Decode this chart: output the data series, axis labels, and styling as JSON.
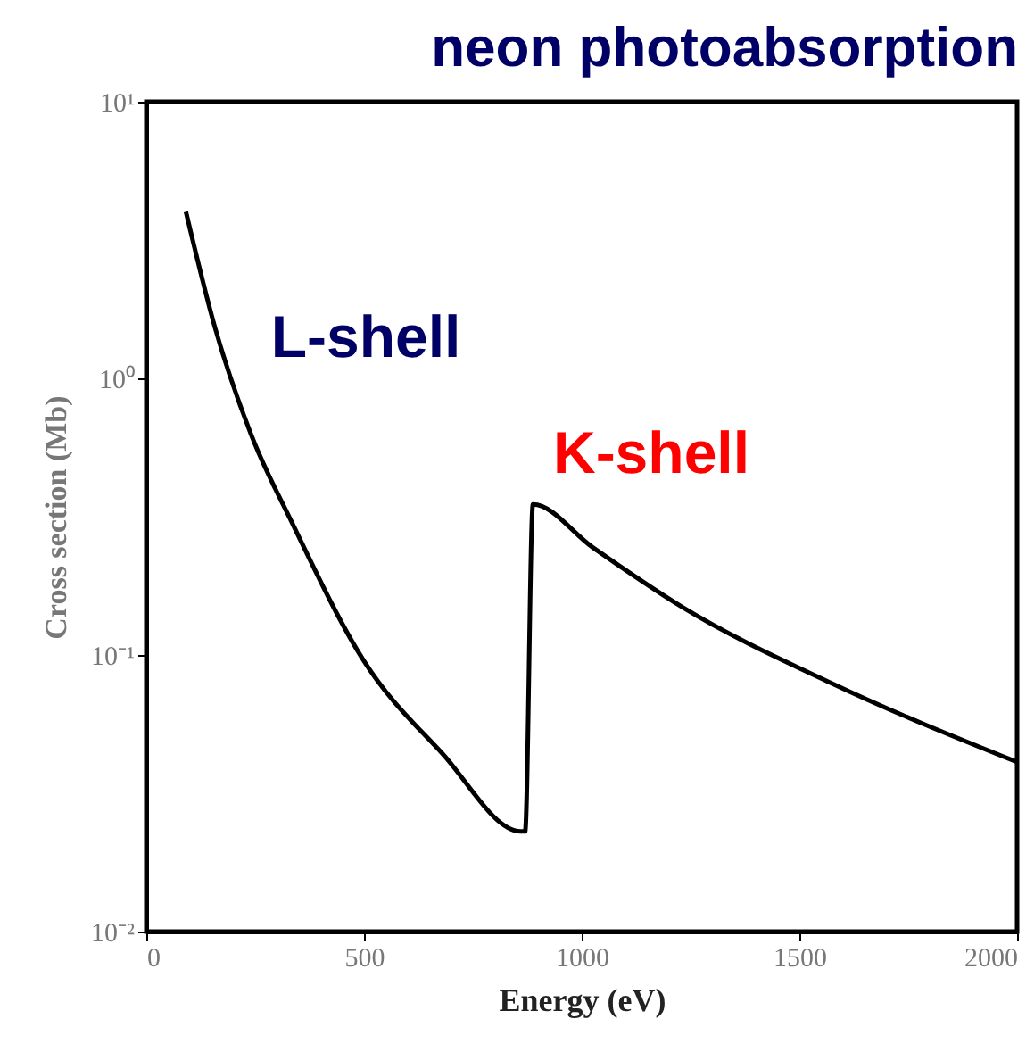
{
  "chart_data": {
    "type": "line",
    "title": "neon photoabsorption",
    "xlabel": "Energy (eV)",
    "ylabel": "Cross section (Mb)",
    "log": "y",
    "xlim": [
      0,
      2000
    ],
    "xticks": [
      0,
      500,
      1000,
      1500,
      2000
    ],
    "ylim": [
      0.01,
      10
    ],
    "yticks": [
      {
        "value": 0.01,
        "label": "10⁻²"
      },
      {
        "value": 0.1,
        "label": "10⁻¹"
      },
      {
        "value": 1,
        "label": "10⁰"
      },
      {
        "value": 10,
        "label": "10¹"
      }
    ],
    "x": [
      91,
      157,
      240,
      335,
      500,
      680,
      860,
      870,
      888,
      1025,
      1231,
      1574,
      2000
    ],
    "series": [
      {
        "color": "#000000",
        "values": [
          4.0,
          1.54,
          0.63,
          0.3,
          0.095,
          0.044,
          0.023,
          0.023,
          0.35,
          0.245,
          0.149,
          0.079,
          0.041
        ]
      }
    ],
    "annotations": [
      "L-shell",
      "K-shell"
    ]
  }
}
